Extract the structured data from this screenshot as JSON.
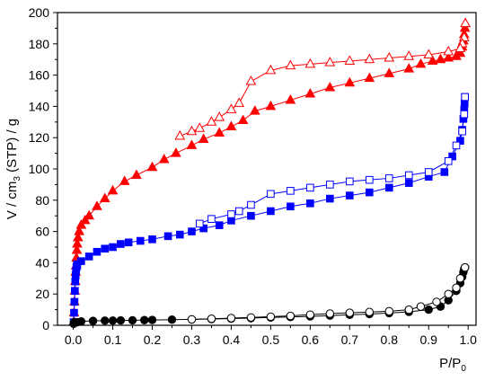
{
  "chart_data": {
    "type": "scatter",
    "title": "",
    "xlabel": "P/P",
    "xlabel_subscript": "0",
    "ylabel": "V / cm",
    "ylabel_subscript": "3",
    "ylabel_suffix": " (STP) / g",
    "xlim": [
      -0.04,
      1.02
    ],
    "ylim": [
      0,
      200
    ],
    "x_ticks": [
      0.0,
      0.1,
      0.2,
      0.3,
      0.4,
      0.5,
      0.6,
      0.7,
      0.8,
      0.9,
      1.0
    ],
    "x_tick_labels": [
      "0.0",
      "0.1",
      "0.2",
      "0.3",
      "0.4",
      "0.5",
      "0.6",
      "0.7",
      "0.8",
      "0.9",
      "1.0"
    ],
    "y_ticks": [
      0,
      20,
      40,
      60,
      80,
      100,
      120,
      140,
      160,
      180,
      200
    ],
    "y_tick_labels": [
      "0",
      "20",
      "40",
      "60",
      "80",
      "100",
      "120",
      "140",
      "160",
      "180",
      "200"
    ],
    "grid": false,
    "legend": "none",
    "series": [
      {
        "color": "#ff0000",
        "marker": "triangle",
        "filled": true,
        "points": [
          [
            0.001,
            2
          ],
          [
            0.002,
            8
          ],
          [
            0.003,
            15
          ],
          [
            0.004,
            22
          ],
          [
            0.005,
            28
          ],
          [
            0.006,
            34
          ],
          [
            0.007,
            38
          ],
          [
            0.008,
            43
          ],
          [
            0.009,
            48
          ],
          [
            0.01,
            52
          ],
          [
            0.012,
            56
          ],
          [
            0.015,
            60
          ],
          [
            0.02,
            64
          ],
          [
            0.03,
            67
          ],
          [
            0.04,
            70
          ],
          [
            0.06,
            76
          ],
          [
            0.08,
            81
          ],
          [
            0.1,
            86
          ],
          [
            0.13,
            92
          ],
          [
            0.16,
            96
          ],
          [
            0.2,
            101
          ],
          [
            0.23,
            106
          ],
          [
            0.26,
            110
          ],
          [
            0.3,
            115
          ],
          [
            0.33,
            119
          ],
          [
            0.37,
            123
          ],
          [
            0.4,
            127
          ],
          [
            0.43,
            131
          ],
          [
            0.46,
            137
          ],
          [
            0.5,
            140
          ],
          [
            0.55,
            144
          ],
          [
            0.6,
            148
          ],
          [
            0.65,
            152
          ],
          [
            0.7,
            155
          ],
          [
            0.75,
            158
          ],
          [
            0.8,
            161
          ],
          [
            0.85,
            164
          ],
          [
            0.88,
            167
          ],
          [
            0.91,
            169
          ],
          [
            0.93,
            170
          ],
          [
            0.95,
            171
          ],
          [
            0.97,
            172
          ],
          [
            0.98,
            174
          ],
          [
            0.985,
            178
          ],
          [
            0.988,
            182
          ],
          [
            0.99,
            186
          ],
          [
            0.992,
            190
          ],
          [
            0.993,
            193
          ]
        ]
      },
      {
        "color": "#ff0000",
        "marker": "triangle",
        "filled": false,
        "points": [
          [
            0.993,
            193
          ],
          [
            0.99,
            184
          ],
          [
            0.985,
            180
          ],
          [
            0.98,
            177
          ],
          [
            0.95,
            175
          ],
          [
            0.9,
            173
          ],
          [
            0.85,
            172
          ],
          [
            0.8,
            171
          ],
          [
            0.75,
            170
          ],
          [
            0.7,
            169
          ],
          [
            0.65,
            168
          ],
          [
            0.6,
            167
          ],
          [
            0.55,
            166
          ],
          [
            0.5,
            163
          ],
          [
            0.45,
            156
          ],
          [
            0.42,
            142
          ],
          [
            0.4,
            138
          ],
          [
            0.37,
            133
          ],
          [
            0.35,
            130
          ],
          [
            0.32,
            126
          ],
          [
            0.3,
            124
          ],
          [
            0.27,
            121
          ]
        ]
      },
      {
        "color": "#0000ff",
        "marker": "square",
        "filled": true,
        "points": [
          [
            0.001,
            2
          ],
          [
            0.002,
            8
          ],
          [
            0.003,
            15
          ],
          [
            0.004,
            22
          ],
          [
            0.005,
            28
          ],
          [
            0.006,
            32
          ],
          [
            0.007,
            35
          ],
          [
            0.008,
            37
          ],
          [
            0.009,
            38
          ],
          [
            0.01,
            39
          ],
          [
            0.02,
            41
          ],
          [
            0.04,
            44
          ],
          [
            0.06,
            47
          ],
          [
            0.08,
            49
          ],
          [
            0.1,
            50
          ],
          [
            0.12,
            52
          ],
          [
            0.14,
            53
          ],
          [
            0.17,
            54
          ],
          [
            0.2,
            55
          ],
          [
            0.24,
            57
          ],
          [
            0.27,
            58
          ],
          [
            0.3,
            60
          ],
          [
            0.33,
            62
          ],
          [
            0.37,
            64
          ],
          [
            0.4,
            67
          ],
          [
            0.45,
            70
          ],
          [
            0.5,
            73
          ],
          [
            0.55,
            76
          ],
          [
            0.6,
            78
          ],
          [
            0.65,
            81
          ],
          [
            0.7,
            83
          ],
          [
            0.75,
            85
          ],
          [
            0.8,
            88
          ],
          [
            0.85,
            91
          ],
          [
            0.9,
            95
          ],
          [
            0.94,
            98
          ],
          [
            0.96,
            108
          ],
          [
            0.98,
            118
          ],
          [
            0.985,
            125
          ],
          [
            0.988,
            132
          ],
          [
            0.99,
            138
          ],
          [
            0.991,
            142
          ],
          [
            0.992,
            146
          ]
        ]
      },
      {
        "color": "#0000ff",
        "marker": "square",
        "filled": false,
        "points": [
          [
            0.992,
            146
          ],
          [
            0.99,
            135
          ],
          [
            0.985,
            124
          ],
          [
            0.97,
            115
          ],
          [
            0.95,
            105
          ],
          [
            0.9,
            98
          ],
          [
            0.85,
            96
          ],
          [
            0.8,
            94
          ],
          [
            0.75,
            93
          ],
          [
            0.7,
            92
          ],
          [
            0.65,
            90
          ],
          [
            0.6,
            88
          ],
          [
            0.55,
            86
          ],
          [
            0.5,
            84
          ],
          [
            0.45,
            77
          ],
          [
            0.42,
            73
          ],
          [
            0.4,
            71
          ],
          [
            0.35,
            68
          ],
          [
            0.32,
            65
          ]
        ]
      },
      {
        "color": "#000000",
        "marker": "circle",
        "filled": true,
        "points": [
          [
            0.001,
            1
          ],
          [
            0.002,
            1.5
          ],
          [
            0.003,
            2
          ],
          [
            0.005,
            2
          ],
          [
            0.01,
            2
          ],
          [
            0.02,
            2.5
          ],
          [
            0.05,
            2.8
          ],
          [
            0.08,
            3
          ],
          [
            0.1,
            3
          ],
          [
            0.12,
            3.1
          ],
          [
            0.15,
            3.2
          ],
          [
            0.18,
            3.3
          ],
          [
            0.2,
            3.4
          ],
          [
            0.25,
            3.6
          ],
          [
            0.3,
            3.8
          ],
          [
            0.35,
            4
          ],
          [
            0.4,
            4.3
          ],
          [
            0.45,
            4.6
          ],
          [
            0.5,
            5
          ],
          [
            0.55,
            5.3
          ],
          [
            0.6,
            5.7
          ],
          [
            0.65,
            6.2
          ],
          [
            0.7,
            6.7
          ],
          [
            0.75,
            7.2
          ],
          [
            0.8,
            7.8
          ],
          [
            0.85,
            8.6
          ],
          [
            0.9,
            10
          ],
          [
            0.93,
            12
          ],
          [
            0.95,
            16
          ],
          [
            0.97,
            22
          ],
          [
            0.98,
            27
          ],
          [
            0.985,
            31
          ],
          [
            0.988,
            34
          ],
          [
            0.99,
            36
          ],
          [
            0.992,
            37
          ]
        ]
      },
      {
        "color": "#000000",
        "marker": "circle",
        "filled": false,
        "points": [
          [
            0.992,
            37
          ],
          [
            0.98,
            30
          ],
          [
            0.97,
            24
          ],
          [
            0.95,
            20
          ],
          [
            0.92,
            15
          ],
          [
            0.88,
            12
          ],
          [
            0.85,
            10
          ],
          [
            0.8,
            9
          ],
          [
            0.75,
            8.5
          ],
          [
            0.7,
            8
          ],
          [
            0.65,
            7.5
          ],
          [
            0.6,
            6.8
          ],
          [
            0.55,
            6
          ],
          [
            0.5,
            5.5
          ],
          [
            0.45,
            5
          ],
          [
            0.4,
            4.6
          ],
          [
            0.35,
            4.2
          ],
          [
            0.3,
            3.8
          ]
        ]
      }
    ]
  }
}
